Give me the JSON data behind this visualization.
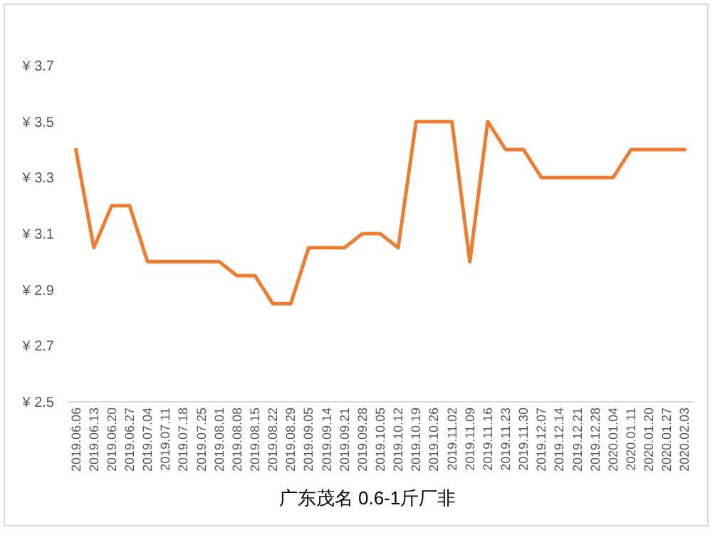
{
  "chart_data": {
    "type": "line",
    "title": "广东茂名 0.6-1斤厂非",
    "categories": [
      "2019.06.06",
      "2019.06.13",
      "2019.06.20",
      "2019.06.27",
      "2019.07.04",
      "2019.07.11",
      "2019.07.18",
      "2019.07.25",
      "2019.08.01",
      "2019.08.08",
      "2019.08.15",
      "2019.08.22",
      "2019.08.29",
      "2019.09.05",
      "2019.09.14",
      "2019.09.21",
      "2019.09.28",
      "2019.10.05",
      "2019.10.12",
      "2019.10.19",
      "2019.10.26",
      "2019.11.02",
      "2019.11.09",
      "2019.11.16",
      "2019.11.23",
      "2019.11.30",
      "2019.12.07",
      "2019.12.14",
      "2019.12.21",
      "2019.12.28",
      "2020.01.04",
      "2020.01.11",
      "2020.01.20",
      "2020.01.27",
      "2020.02.03"
    ],
    "series": [
      {
        "color": "#ed7d31",
        "values": [
          3.4,
          3.05,
          3.2,
          3.2,
          3.0,
          3.0,
          3.0,
          3.0,
          3.0,
          2.95,
          2.95,
          2.85,
          2.85,
          3.05,
          3.05,
          3.05,
          3.1,
          3.1,
          3.05,
          3.5,
          3.5,
          3.5,
          3.0,
          3.5,
          3.4,
          3.4,
          3.3,
          3.3,
          3.3,
          3.3,
          3.3,
          3.4,
          3.4,
          3.4,
          3.4
        ]
      }
    ],
    "ylim": [
      2.5,
      3.7
    ],
    "yticks": [
      {
        "value": 2.5,
        "label": "¥ 2.5"
      },
      {
        "value": 2.7,
        "label": "¥ 2.7"
      },
      {
        "value": 2.9,
        "label": "¥ 2.9"
      },
      {
        "value": 3.1,
        "label": "¥ 3.1"
      },
      {
        "value": 3.3,
        "label": "¥ 3.3"
      },
      {
        "value": 3.5,
        "label": "¥ 3.5"
      },
      {
        "value": 3.7,
        "label": "¥ 3.7"
      }
    ]
  }
}
